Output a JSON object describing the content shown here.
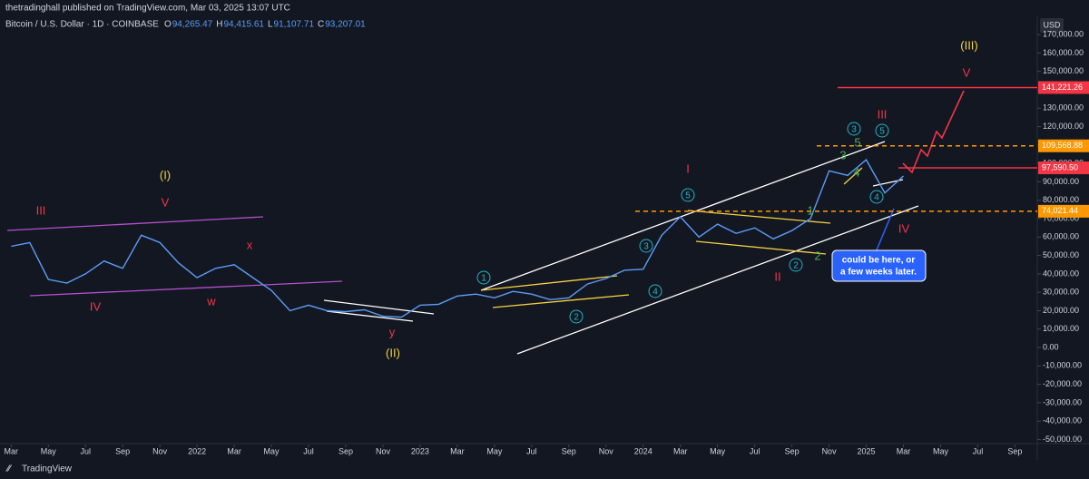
{
  "header": {
    "publisher": "thetradinghall published on TradingView.com, Mar 03, 2025 13:07 UTC",
    "brand": "TradingView"
  },
  "chart_data": {
    "type": "line",
    "title": "Bitcoin / U.S. Dollar · 1D · COINBASE",
    "ohlc": [
      {
        "key": "O",
        "value": "94,265.47"
      },
      {
        "key": "H",
        "value": "94,415.61"
      },
      {
        "key": "L",
        "value": "91,107.71"
      },
      {
        "key": "C",
        "value": "93,207.01"
      }
    ],
    "currency": "USD",
    "x": [
      0,
      1,
      2,
      3,
      4,
      5,
      6,
      7,
      8,
      9,
      10,
      11,
      12,
      13,
      14,
      15,
      16,
      17,
      18,
      19,
      20,
      21,
      22,
      23,
      24,
      25,
      26,
      27,
      28,
      29,
      30,
      31,
      32,
      33,
      34,
      35,
      36,
      37,
      38,
      39,
      40,
      41,
      42,
      43,
      44,
      45,
      46,
      47,
      48
    ],
    "series": [
      {
        "name": "BTCUSD",
        "color": "#5b9cf6",
        "values": [
          55000,
          57000,
          37000,
          35000,
          40000,
          47000,
          43000,
          61000,
          57000,
          46000,
          38000,
          43000,
          45000,
          38000,
          31000,
          20000,
          23000,
          20000,
          19500,
          20500,
          17000,
          16500,
          23000,
          23500,
          28000,
          29000,
          27000,
          30500,
          29000,
          26000,
          27000,
          34500,
          37500,
          42000,
          42500,
          61000,
          71000,
          60000,
          67000,
          62000,
          65000,
          59000,
          63500,
          70000,
          96000,
          93500,
          102000,
          84000,
          93200
        ]
      }
    ],
    "xlim": [
      -0.6,
      55.2
    ],
    "xticks": [
      {
        "value": 0,
        "label": "Mar"
      },
      {
        "value": 2,
        "label": "May"
      },
      {
        "value": 4,
        "label": "Jul"
      },
      {
        "value": 6,
        "label": "Sep"
      },
      {
        "value": 8,
        "label": "Nov"
      },
      {
        "value": 10,
        "label": "2022"
      },
      {
        "value": 12,
        "label": "Mar"
      },
      {
        "value": 14,
        "label": "May"
      },
      {
        "value": 16,
        "label": "Jul"
      },
      {
        "value": 18,
        "label": "Sep"
      },
      {
        "value": 20,
        "label": "Nov"
      },
      {
        "value": 22,
        "label": "2023"
      },
      {
        "value": 24,
        "label": "Mar"
      },
      {
        "value": 26,
        "label": "May"
      },
      {
        "value": 28,
        "label": "Jul"
      },
      {
        "value": 30,
        "label": "Sep"
      },
      {
        "value": 32,
        "label": "Nov"
      },
      {
        "value": 34,
        "label": "2024"
      },
      {
        "value": 36,
        "label": "Mar"
      },
      {
        "value": 38,
        "label": "May"
      },
      {
        "value": 40,
        "label": "Jul"
      },
      {
        "value": 42,
        "label": "Sep"
      },
      {
        "value": 44,
        "label": "Nov"
      },
      {
        "value": 46,
        "label": "2025"
      },
      {
        "value": 48,
        "label": "Mar"
      },
      {
        "value": 50,
        "label": "May"
      },
      {
        "value": 52,
        "label": "Jul"
      },
      {
        "value": 54,
        "label": "Sep"
      }
    ],
    "ylim": [
      -52700,
      174000
    ],
    "yticks": [
      {
        "value": -50000,
        "label": "-50,000.00"
      },
      {
        "value": -40000,
        "label": "-40,000.00"
      },
      {
        "value": -30000,
        "label": "-30,000.00"
      },
      {
        "value": -20000,
        "label": "-20,000.00"
      },
      {
        "value": -10000,
        "label": "-10,000.00"
      },
      {
        "value": 0,
        "label": "0.00"
      },
      {
        "value": 10000,
        "label": "10,000.00"
      },
      {
        "value": 20000,
        "label": "20,000.00"
      },
      {
        "value": 30000,
        "label": "30,000.00"
      },
      {
        "value": 40000,
        "label": "40,000.00"
      },
      {
        "value": 50000,
        "label": "50,000.00"
      },
      {
        "value": 60000,
        "label": "60,000.00"
      },
      {
        "value": 70000,
        "label": "70,000.00"
      },
      {
        "value": 80000,
        "label": "80,000.00"
      },
      {
        "value": 90000,
        "label": "90,000.00"
      },
      {
        "value": 100000,
        "label": "100,000.00"
      },
      {
        "value": 110000,
        "label": "110,000.00"
      },
      {
        "value": 120000,
        "label": "120,000.00"
      },
      {
        "value": 130000,
        "label": "130,000.00"
      },
      {
        "value": 140000,
        "label": "140,000.00"
      },
      {
        "value": 150000,
        "label": "150,000.00"
      },
      {
        "value": 160000,
        "label": "160,000.00"
      },
      {
        "value": 170000,
        "label": "170,000.00"
      }
    ],
    "grid": false,
    "levels": [
      {
        "value": 141221.26,
        "label": "141,221.26",
        "color": "#f23645",
        "dashed": false
      },
      {
        "value": 109568.88,
        "label": "109,568.88",
        "color": "#ff9800",
        "dashed": true
      },
      {
        "value": 97590.5,
        "label": "97,590.50",
        "color": "#f23645",
        "dashed": false
      },
      {
        "value": 74021.44,
        "label": "74,021.44",
        "color": "#ff9800",
        "dashed": true
      }
    ],
    "annotations": [
      {
        "text": "(I)",
        "color": "#f5d142",
        "circled": false
      },
      {
        "text": "V",
        "color": "#f23645",
        "circled": false
      },
      {
        "text": "III",
        "color": "#f23645",
        "circled": false
      },
      {
        "text": "IV",
        "color": "#f23645",
        "circled": false
      },
      {
        "text": "x",
        "color": "#f23645",
        "circled": false
      },
      {
        "text": "w",
        "color": "#f23645",
        "circled": false
      },
      {
        "text": "y",
        "color": "#f23645",
        "circled": false
      },
      {
        "text": "(II)",
        "color": "#f5d142",
        "circled": false
      },
      {
        "text": "1",
        "color": "#22b5c8",
        "circled": true
      },
      {
        "text": "2",
        "color": "#22b5c8",
        "circled": true
      },
      {
        "text": "3",
        "color": "#22b5c8",
        "circled": true
      },
      {
        "text": "4",
        "color": "#22b5c8",
        "circled": true
      },
      {
        "text": "5",
        "color": "#22b5c8",
        "circled": true
      },
      {
        "text": "I",
        "color": "#f23645",
        "circled": false
      },
      {
        "text": "1",
        "color": "#4caf50",
        "circled": false
      },
      {
        "text": "II",
        "color": "#f23645",
        "circled": false
      },
      {
        "text": "2",
        "color": "#22b5c8",
        "circled": true
      },
      {
        "text": "2",
        "color": "#4caf50",
        "circled": false
      },
      {
        "text": "3",
        "color": "#4caf50",
        "circled": false
      },
      {
        "text": "4",
        "color": "#4caf50",
        "circled": false
      },
      {
        "text": "5",
        "color": "#4caf50",
        "circled": false
      },
      {
        "text": "3",
        "color": "#22b5c8",
        "circled": true
      },
      {
        "text": "4",
        "color": "#22b5c8",
        "circled": true
      },
      {
        "text": "5",
        "color": "#22b5c8",
        "circled": true
      },
      {
        "text": "III",
        "color": "#f23645",
        "circled": false
      },
      {
        "text": "IV",
        "color": "#f23645",
        "circled": false
      },
      {
        "text": "V",
        "color": "#f23645",
        "circled": false
      },
      {
        "text": "(III)",
        "color": "#f5d142",
        "circled": false
      }
    ],
    "callout": [
      "could be here, or",
      "a few weeks later."
    ]
  }
}
